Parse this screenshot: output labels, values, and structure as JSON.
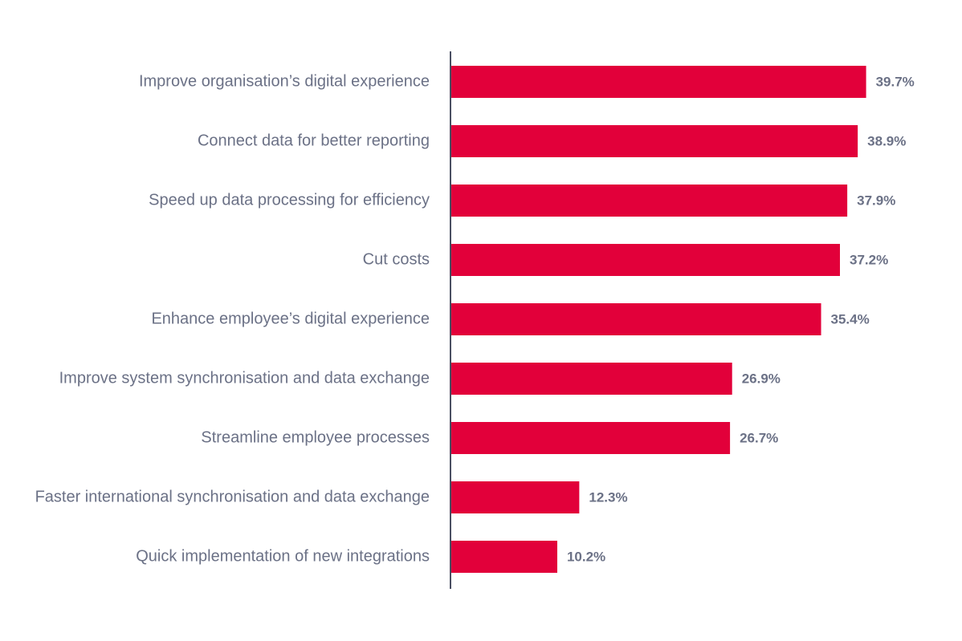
{
  "chart_data": {
    "type": "bar",
    "orientation": "horizontal",
    "categories": [
      "Improve organisation’s digital experience",
      "Connect data for better reporting",
      "Speed up data processing for efficiency",
      "Cut costs",
      "Enhance employee’s digital experience",
      "Improve system synchronisation and data exchange",
      "Streamline employee processes",
      "Faster international synchronisation and data exchange",
      "Quick implementation of new integrations"
    ],
    "values": [
      39.7,
      38.9,
      37.9,
      37.2,
      35.4,
      26.9,
      26.7,
      12.3,
      10.2
    ],
    "value_labels": [
      "39.7%",
      "38.9%",
      "37.9%",
      "37.2%",
      "35.4%",
      "26.9%",
      "26.7%",
      "12.3%",
      "10.2%"
    ],
    "title": "",
    "xlabel": "",
    "ylabel": "",
    "xlim": [
      0,
      40
    ],
    "grid": false,
    "legend": "none",
    "colors": {
      "bar": "#e2003a",
      "axis": "#4a4f63",
      "text": "#6b7186"
    }
  }
}
